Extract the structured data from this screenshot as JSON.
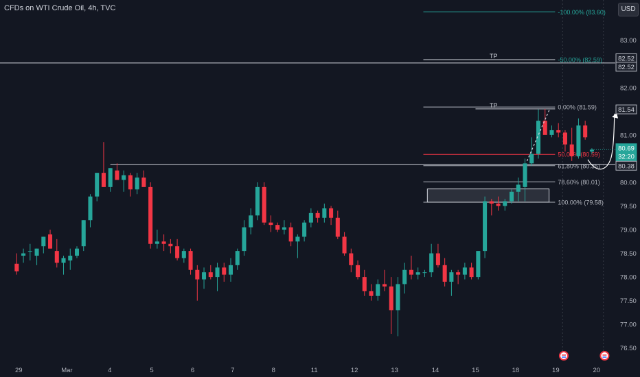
{
  "header": {
    "symbol_title": "CFDs on WTI Crude Oil, 4h, TVC",
    "currency_button": "USD"
  },
  "chart_data": {
    "type": "candlestick",
    "title": "CFDs on WTI Crude Oil, 4h, TVC",
    "y_axis": {
      "ylim": [
        76.25,
        83.85
      ],
      "ticks": [
        76.5,
        77.0,
        77.5,
        78.0,
        78.5,
        79.0,
        79.5,
        80.0,
        80.5,
        81.0,
        81.5,
        82.0,
        82.5,
        83.0
      ]
    },
    "x_axis": {
      "tick_labels": [
        {
          "t": 0.3,
          "label": "29"
        },
        {
          "t": 7.5,
          "label": "Mar"
        },
        {
          "t": 13.9,
          "label": "4"
        },
        {
          "t": 20.2,
          "label": "5"
        },
        {
          "t": 26.3,
          "label": "6"
        },
        {
          "t": 32.3,
          "label": "7"
        },
        {
          "t": 38.4,
          "label": "8"
        },
        {
          "t": 44.5,
          "label": "11"
        },
        {
          "t": 50.5,
          "label": "12"
        },
        {
          "t": 56.5,
          "label": "13"
        },
        {
          "t": 62.6,
          "label": "14"
        },
        {
          "t": 68.6,
          "label": "15"
        },
        {
          "t": 74.6,
          "label": "18"
        },
        {
          "t": 80.6,
          "label": "19"
        },
        {
          "t": 86.7,
          "label": "20"
        }
      ],
      "xlim": [
        -2.5,
        89.5
      ]
    },
    "candles": [
      {
        "o": 78.28,
        "h": 78.5,
        "l": 78.05,
        "c": 78.12
      },
      {
        "o": 78.45,
        "h": 78.6,
        "l": 78.3,
        "c": 78.5
      },
      {
        "o": 78.55,
        "h": 78.7,
        "l": 78.35,
        "c": 78.55
      },
      {
        "o": 78.45,
        "h": 78.6,
        "l": 78.25,
        "c": 78.6
      },
      {
        "o": 78.65,
        "h": 78.85,
        "l": 78.5,
        "c": 78.85
      },
      {
        "o": 78.9,
        "h": 79.0,
        "l": 78.6,
        "c": 78.6
      },
      {
        "o": 78.55,
        "h": 78.8,
        "l": 78.2,
        "c": 78.3
      },
      {
        "o": 78.3,
        "h": 78.45,
        "l": 78.05,
        "c": 78.4
      },
      {
        "o": 78.35,
        "h": 78.6,
        "l": 78.15,
        "c": 78.45
      },
      {
        "o": 78.45,
        "h": 78.65,
        "l": 78.4,
        "c": 78.6
      },
      {
        "o": 78.65,
        "h": 79.2,
        "l": 78.55,
        "c": 79.2
      },
      {
        "o": 79.2,
        "h": 79.75,
        "l": 79.05,
        "c": 79.7
      },
      {
        "o": 79.7,
        "h": 80.2,
        "l": 79.6,
        "c": 80.2
      },
      {
        "o": 80.2,
        "h": 80.85,
        "l": 79.9,
        "c": 79.9
      },
      {
        "o": 79.9,
        "h": 80.3,
        "l": 79.8,
        "c": 80.3
      },
      {
        "o": 80.25,
        "h": 80.4,
        "l": 80.05,
        "c": 80.05
      },
      {
        "o": 80.05,
        "h": 80.25,
        "l": 79.8,
        "c": 80.15
      },
      {
        "o": 80.15,
        "h": 80.2,
        "l": 79.7,
        "c": 79.85
      },
      {
        "o": 79.85,
        "h": 80.2,
        "l": 79.75,
        "c": 80.1
      },
      {
        "o": 80.1,
        "h": 80.25,
        "l": 79.95,
        "c": 79.9
      },
      {
        "o": 79.9,
        "h": 80.0,
        "l": 78.6,
        "c": 78.7
      },
      {
        "o": 78.7,
        "h": 79.0,
        "l": 78.6,
        "c": 78.75
      },
      {
        "o": 78.75,
        "h": 78.9,
        "l": 78.55,
        "c": 78.7
      },
      {
        "o": 78.7,
        "h": 78.8,
        "l": 78.5,
        "c": 78.65
      },
      {
        "o": 78.65,
        "h": 78.8,
        "l": 78.35,
        "c": 78.4
      },
      {
        "o": 78.4,
        "h": 78.6,
        "l": 78.3,
        "c": 78.55
      },
      {
        "o": 78.55,
        "h": 78.6,
        "l": 78.05,
        "c": 78.15
      },
      {
        "o": 78.15,
        "h": 78.25,
        "l": 77.5,
        "c": 77.95
      },
      {
        "o": 77.95,
        "h": 78.2,
        "l": 77.75,
        "c": 78.1
      },
      {
        "o": 78.1,
        "h": 78.25,
        "l": 77.95,
        "c": 78.0
      },
      {
        "o": 78.0,
        "h": 78.3,
        "l": 77.7,
        "c": 78.2
      },
      {
        "o": 78.2,
        "h": 78.3,
        "l": 77.9,
        "c": 78.05
      },
      {
        "o": 78.05,
        "h": 78.4,
        "l": 77.9,
        "c": 78.25
      },
      {
        "o": 78.25,
        "h": 78.6,
        "l": 78.15,
        "c": 78.55
      },
      {
        "o": 78.55,
        "h": 79.2,
        "l": 78.45,
        "c": 79.05
      },
      {
        "o": 79.05,
        "h": 79.45,
        "l": 78.9,
        "c": 79.3
      },
      {
        "o": 79.3,
        "h": 80.0,
        "l": 79.2,
        "c": 79.9
      },
      {
        "o": 79.9,
        "h": 80.0,
        "l": 79.1,
        "c": 79.15
      },
      {
        "o": 79.15,
        "h": 79.3,
        "l": 78.95,
        "c": 79.1
      },
      {
        "o": 79.1,
        "h": 79.15,
        "l": 78.95,
        "c": 79.0
      },
      {
        "o": 79.0,
        "h": 79.2,
        "l": 78.9,
        "c": 79.05
      },
      {
        "o": 79.05,
        "h": 79.15,
        "l": 78.65,
        "c": 78.75
      },
      {
        "o": 78.75,
        "h": 78.9,
        "l": 78.4,
        "c": 78.85
      },
      {
        "o": 78.85,
        "h": 79.2,
        "l": 78.75,
        "c": 79.15
      },
      {
        "o": 79.15,
        "h": 79.45,
        "l": 79.05,
        "c": 79.35
      },
      {
        "o": 79.35,
        "h": 79.4,
        "l": 79.15,
        "c": 79.25
      },
      {
        "o": 79.25,
        "h": 79.55,
        "l": 79.15,
        "c": 79.45
      },
      {
        "o": 79.45,
        "h": 79.5,
        "l": 79.1,
        "c": 79.25
      },
      {
        "o": 79.25,
        "h": 79.4,
        "l": 78.8,
        "c": 78.85
      },
      {
        "o": 78.85,
        "h": 78.95,
        "l": 78.45,
        "c": 78.5
      },
      {
        "o": 78.5,
        "h": 78.6,
        "l": 78.1,
        "c": 78.25
      },
      {
        "o": 78.25,
        "h": 78.35,
        "l": 77.95,
        "c": 78.0
      },
      {
        "o": 78.0,
        "h": 78.15,
        "l": 77.6,
        "c": 77.7
      },
      {
        "o": 77.7,
        "h": 77.85,
        "l": 77.5,
        "c": 77.6
      },
      {
        "o": 77.6,
        "h": 77.95,
        "l": 77.5,
        "c": 77.85
      },
      {
        "o": 77.85,
        "h": 78.15,
        "l": 77.7,
        "c": 77.8
      },
      {
        "o": 77.8,
        "h": 78.0,
        "l": 76.8,
        "c": 77.3
      },
      {
        "o": 77.3,
        "h": 78.0,
        "l": 76.75,
        "c": 77.85
      },
      {
        "o": 77.85,
        "h": 78.3,
        "l": 77.65,
        "c": 78.15
      },
      {
        "o": 78.15,
        "h": 78.45,
        "l": 77.95,
        "c": 78.05
      },
      {
        "o": 78.05,
        "h": 78.2,
        "l": 77.95,
        "c": 78.1
      },
      {
        "o": 78.1,
        "h": 78.15,
        "l": 78.0,
        "c": 78.1
      },
      {
        "o": 78.1,
        "h": 78.7,
        "l": 78.0,
        "c": 78.5
      },
      {
        "o": 78.5,
        "h": 78.7,
        "l": 78.2,
        "c": 78.25
      },
      {
        "o": 78.25,
        "h": 78.4,
        "l": 77.8,
        "c": 77.9
      },
      {
        "o": 77.9,
        "h": 78.15,
        "l": 77.6,
        "c": 78.1
      },
      {
        "o": 78.1,
        "h": 78.15,
        "l": 77.85,
        "c": 78.05
      },
      {
        "o": 78.05,
        "h": 78.3,
        "l": 77.95,
        "c": 78.2
      },
      {
        "o": 78.2,
        "h": 78.3,
        "l": 77.95,
        "c": 78.0
      },
      {
        "o": 78.0,
        "h": 78.55,
        "l": 77.95,
        "c": 78.55
      },
      {
        "o": 78.55,
        "h": 79.7,
        "l": 78.4,
        "c": 79.6
      },
      {
        "o": 79.6,
        "h": 79.65,
        "l": 79.3,
        "c": 79.55
      },
      {
        "o": 79.55,
        "h": 79.7,
        "l": 79.4,
        "c": 79.5
      },
      {
        "o": 79.5,
        "h": 79.65,
        "l": 79.4,
        "c": 79.6
      },
      {
        "o": 79.6,
        "h": 79.85,
        "l": 79.55,
        "c": 79.8
      },
      {
        "o": 79.8,
        "h": 80.1,
        "l": 79.6,
        "c": 79.95
      },
      {
        "o": 79.9,
        "h": 80.5,
        "l": 79.6,
        "c": 80.4
      },
      {
        "o": 80.4,
        "h": 80.95,
        "l": 80.35,
        "c": 80.6
      },
      {
        "o": 80.6,
        "h": 81.54,
        "l": 80.5,
        "c": 81.3
      },
      {
        "o": 81.3,
        "h": 81.55,
        "l": 81.05,
        "c": 81.0
      },
      {
        "o": 81.0,
        "h": 81.2,
        "l": 80.95,
        "c": 81.1
      },
      {
        "o": 81.1,
        "h": 81.25,
        "l": 80.95,
        "c": 81.05
      },
      {
        "o": 81.05,
        "h": 81.1,
        "l": 80.65,
        "c": 80.8
      },
      {
        "o": 80.8,
        "h": 81.15,
        "l": 80.45,
        "c": 80.55
      },
      {
        "o": 80.55,
        "h": 81.35,
        "l": 80.5,
        "c": 81.2
      },
      {
        "o": 81.2,
        "h": 81.3,
        "l": 80.9,
        "c": 80.95
      },
      {
        "o": 80.65,
        "h": 80.72,
        "l": 80.6,
        "c": 80.69
      }
    ],
    "horizontal_lines": [
      82.52,
      80.38
    ],
    "fibonacci": {
      "levels": [
        {
          "ratio_label": "-100.00% (83.60)",
          "price": 83.6,
          "color": "#26a69a"
        },
        {
          "ratio_label": "-50.00% (82.59)",
          "price": 82.59,
          "color": "#26a69a"
        },
        {
          "ratio_label": "0.00% (81.59)",
          "price": 81.59,
          "color": "#b2b5be"
        },
        {
          "ratio_label": "50.00% (80.59)",
          "price": 80.59,
          "color": "#f23645"
        },
        {
          "ratio_label": "61.80% (80.35)",
          "price": 80.35,
          "color": "#b2b5be"
        },
        {
          "ratio_label": "78.60% (80.01)",
          "price": 80.01,
          "color": "#b2b5be"
        },
        {
          "ratio_label": "100.00% (79.58)",
          "price": 79.58,
          "color": "#b2b5be"
        }
      ]
    },
    "tp_labels": [
      {
        "text": "TP",
        "price": 82.59
      },
      {
        "text": "TP",
        "price": 81.55
      }
    ],
    "demand_zone": {
      "price_top": 79.86,
      "price_bottom": 79.58
    },
    "price_badges": [
      {
        "text": "82.52",
        "price": 82.62,
        "bg": "#1e222d",
        "border": "#b2b5be"
      },
      {
        "text": "82.52",
        "price": 82.44,
        "bg": "#1e222d",
        "border": "#b2b5be"
      },
      {
        "text": "81.54",
        "price": 81.54,
        "bg": "#1e222d",
        "border": "#b2b5be"
      },
      {
        "text": "80.69",
        "price": 80.72,
        "bg": "#26a69a",
        "border": "#26a69a"
      },
      {
        "text": "32:20",
        "price": 80.55,
        "bg": "#26a69a",
        "border": "#26a69a"
      },
      {
        "text": "80.38",
        "price": 80.35,
        "bg": "#1e222d",
        "border": "#b2b5be"
      }
    ],
    "colors": {
      "up": "#26a69a",
      "down": "#f23645",
      "bg": "#131722",
      "text": "#b2b5be"
    }
  }
}
